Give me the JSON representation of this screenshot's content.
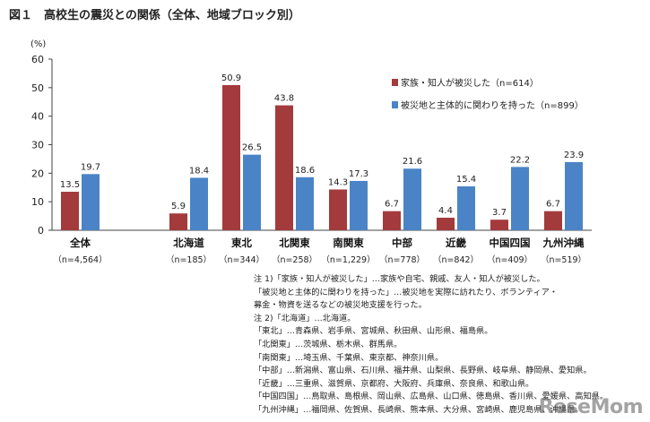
{
  "figure_title": "図１　高校生の震災との関係（全体、地域ブロック別）",
  "watermark": "ReseMom",
  "chart_data": {
    "type": "bar",
    "ylabel": "(%)",
    "ylim": [
      0,
      60
    ],
    "yticks": [
      0,
      10,
      20,
      30,
      40,
      50,
      60
    ],
    "grid": false,
    "legend_position": "right",
    "categories": [
      "全体",
      "北海道",
      "東北",
      "北関東",
      "南関東",
      "中部",
      "近畿",
      "中国四国",
      "九州沖縄"
    ],
    "category_n": [
      "（n=4,564）",
      "（n=185）",
      "（n=344）",
      "（n=258）",
      "（n=1,229）",
      "（n=778）",
      "（n=842）",
      "（n=409）",
      "（n=519）"
    ],
    "series": [
      {
        "name": "家族・知人が被災した（n=614）",
        "color": "#a33a3c",
        "values": [
          13.5,
          5.9,
          50.9,
          43.8,
          14.3,
          6.7,
          4.4,
          3.7,
          6.7
        ]
      },
      {
        "name": "被災地と主体的に関わりを持った（n=899）",
        "color": "#4a84c6",
        "values": [
          19.7,
          18.4,
          26.5,
          18.6,
          17.3,
          21.6,
          15.4,
          22.2,
          23.9
        ]
      }
    ]
  },
  "notes": [
    "注 1)「家族・知人が被災した」…家族や自宅、親戚、友人・知人が被災した。",
    "「被災地と主体的に関わりを持った」…被災地を実際に訪れたり、ボランティア・",
    "募金・物資を送るなどの被災地支援を行った。",
    "注 2)「北海道」…北海道。",
    "「東北」…青森県、岩手県、宮城県、秋田県、山形県、福島県。",
    "「北関東」…茨城県、栃木県、群馬県。",
    "「南関東」…埼玉県、千葉県、東京都、神奈川県。",
    "「中部」…新潟県、富山県、石川県、福井県、山梨県、長野県、岐阜県、静岡県、愛知県。",
    "「近畿」…三重県、滋賀県、京都府、大阪府、兵庫県、奈良県、和歌山県。",
    "「中国四国」…鳥取県、島根県、岡山県、広島県、山口県、徳島県、香川県、愛媛県、高知県。",
    "「九州沖縄」…福岡県、佐賀県、長崎県、熊本県、大分県、宮崎県、鹿児島県、沖縄県。"
  ]
}
